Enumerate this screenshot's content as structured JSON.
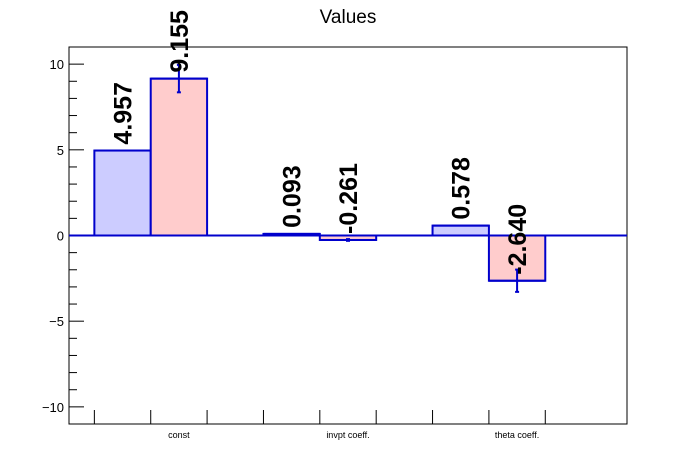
{
  "chart_data": {
    "type": "bar",
    "title": "Values",
    "categories": [
      "const",
      "invpt coeff.",
      "theta coeff."
    ],
    "series": [
      {
        "values": [
          4.957,
          0.093,
          0.578
        ],
        "errors": [
          0.0,
          0.0,
          0.0
        ],
        "labels": [
          "4.957",
          "0.093",
          "0.578"
        ],
        "color": "#ccccff"
      },
      {
        "values": [
          9.155,
          -0.261,
          -2.64
        ],
        "errors": [
          0.8,
          0.05,
          0.65
        ],
        "labels": [
          "9.155",
          "-0.261",
          "-2.640"
        ],
        "color": "#ffcccc"
      }
    ],
    "ylim": [
      -11,
      11
    ],
    "yticks": [
      -10,
      -5,
      0,
      5,
      10
    ],
    "ytick_labels": [
      "−10",
      "−5",
      "0",
      "5",
      "10"
    ],
    "xlabel": "",
    "ylabel": "",
    "grid": false,
    "edge_color": "#0000cc"
  }
}
